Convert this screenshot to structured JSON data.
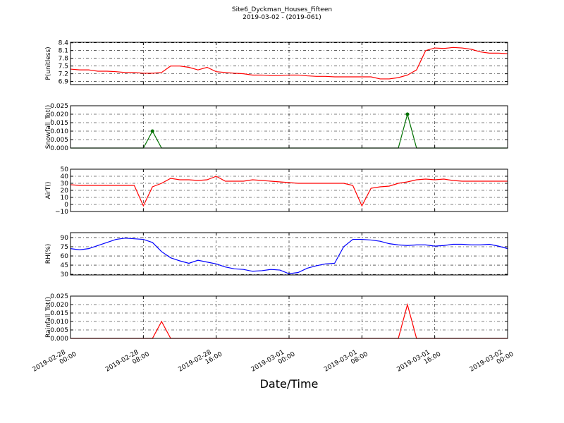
{
  "chart_data": {
    "title": "Site6_Dyckman_Houses_Fifteen",
    "subtitle": "2019-03-02 - (2019-061)",
    "x_label": "Date/Time",
    "xlim": [
      "2019-02-28 00:00",
      "2019-03-02 00:00"
    ],
    "xticks": [
      "2019-02-28 00:00",
      "2019-02-28 08:00",
      "2019-02-28 16:00",
      "2019-03-01 00:00",
      "2019-03-01 08:00",
      "2019-03-01 16:00",
      "2019-03-02 00:00"
    ],
    "grid": true,
    "x": [
      "2019-02-28 00:00",
      "2019-02-28 01:00",
      "2019-02-28 02:00",
      "2019-02-28 03:00",
      "2019-02-28 04:00",
      "2019-02-28 05:00",
      "2019-02-28 06:00",
      "2019-02-28 07:00",
      "2019-02-28 08:00",
      "2019-02-28 09:00",
      "2019-02-28 10:00",
      "2019-02-28 11:00",
      "2019-02-28 12:00",
      "2019-02-28 13:00",
      "2019-02-28 14:00",
      "2019-02-28 15:00",
      "2019-02-28 16:00",
      "2019-02-28 17:00",
      "2019-02-28 18:00",
      "2019-02-28 19:00",
      "2019-02-28 20:00",
      "2019-02-28 21:00",
      "2019-02-28 22:00",
      "2019-02-28 23:00",
      "2019-03-01 00:00",
      "2019-03-01 01:00",
      "2019-03-01 02:00",
      "2019-03-01 03:00",
      "2019-03-01 04:00",
      "2019-03-01 05:00",
      "2019-03-01 06:00",
      "2019-03-01 07:00",
      "2019-03-01 08:00",
      "2019-03-01 09:00",
      "2019-03-01 10:00",
      "2019-03-01 11:00",
      "2019-03-01 12:00",
      "2019-03-01 13:00",
      "2019-03-01 14:00",
      "2019-03-01 15:00",
      "2019-03-01 16:00",
      "2019-03-01 17:00",
      "2019-03-01 18:00",
      "2019-03-01 19:00",
      "2019-03-01 20:00",
      "2019-03-01 21:00",
      "2019-03-01 22:00",
      "2019-03-01 23:00",
      "2019-03-02 00:00"
    ],
    "panels": [
      {
        "type": "line",
        "y_label": "P(unitless)",
        "color": "#ff0000",
        "ylim": [
          6.78,
          8.42
        ],
        "yticks": [
          6.9,
          7.2,
          7.5,
          7.8,
          8.1,
          8.4
        ],
        "values": [
          7.38,
          7.35,
          7.35,
          7.3,
          7.3,
          7.28,
          7.25,
          7.25,
          7.22,
          7.22,
          7.25,
          7.5,
          7.5,
          7.45,
          7.35,
          7.45,
          7.28,
          7.25,
          7.22,
          7.2,
          7.15,
          7.15,
          7.13,
          7.13,
          7.15,
          7.15,
          7.12,
          7.1,
          7.1,
          7.08,
          7.08,
          7.08,
          7.08,
          7.08,
          7.0,
          7.0,
          7.05,
          7.15,
          7.35,
          8.1,
          8.2,
          8.18,
          8.22,
          8.2,
          8.15,
          8.05,
          8.0,
          8.0,
          7.98
        ]
      },
      {
        "type": "line",
        "y_label": "Snowfall_Tot()",
        "color": "#007000",
        "markers": true,
        "ylim": [
          0,
          0.025
        ],
        "yticks": [
          {
            "value": 0,
            "label": "0.000"
          },
          {
            "value": 0.005,
            "label": "0.005"
          },
          {
            "value": 0.01,
            "label": "0.010"
          },
          {
            "value": 0.015,
            "label": "0.015"
          },
          {
            "value": 0.02,
            "label": "0.020"
          },
          {
            "value": 0.025,
            "label": "0.025"
          }
        ],
        "values": [
          0,
          0,
          0,
          0,
          0,
          0,
          0,
          0,
          0,
          0.01,
          0,
          0,
          0,
          0,
          0,
          0,
          0,
          0,
          0,
          0,
          0,
          0,
          0,
          0,
          0,
          0,
          0,
          0,
          0,
          0,
          0,
          0,
          0,
          0,
          0,
          0,
          0,
          0.02,
          0,
          0,
          0,
          0,
          0,
          0,
          0,
          0,
          0,
          0,
          0
        ]
      },
      {
        "type": "line",
        "y_label": "AirT()",
        "color": "#ff0000",
        "ylim": [
          -10,
          50
        ],
        "yticks": [
          {
            "value": -10,
            "label": "−10"
          },
          0,
          10,
          20,
          30,
          40,
          50
        ],
        "values": [
          28,
          27,
          27,
          27,
          27,
          27,
          27,
          27,
          -2,
          25,
          30,
          37,
          35,
          35,
          34,
          35,
          40,
          33,
          33,
          33,
          35,
          34,
          33,
          32,
          31,
          30,
          30,
          30,
          30,
          30,
          30,
          27,
          -2,
          23,
          25,
          26,
          30,
          32,
          35,
          36,
          35,
          36,
          34,
          33,
          33,
          33,
          33,
          33,
          33
        ]
      },
      {
        "type": "line",
        "y_label": "RH(%)",
        "color": "#0000ff",
        "ylim": [
          29,
          98
        ],
        "yticks": [
          30,
          45,
          60,
          75,
          90
        ],
        "values": [
          72,
          70,
          72,
          77,
          82,
          87,
          89,
          88,
          87,
          82,
          67,
          57,
          52,
          48,
          53,
          50,
          47,
          42,
          39,
          38,
          35,
          36,
          38,
          37,
          31,
          33,
          40,
          44,
          47,
          48,
          75,
          87,
          87,
          86,
          84,
          80,
          78,
          77,
          78,
          78,
          76,
          77,
          79,
          79,
          78,
          78,
          79,
          76,
          72
        ]
      },
      {
        "type": "line",
        "y_label": "Rainfall_Tot()",
        "color": "#ff0000",
        "ylim": [
          0,
          0.025
        ],
        "yticks": [
          {
            "value": 0,
            "label": "0.000"
          },
          {
            "value": 0.005,
            "label": "0.005"
          },
          {
            "value": 0.01,
            "label": "0.010"
          },
          {
            "value": 0.015,
            "label": "0.015"
          },
          {
            "value": 0.02,
            "label": "0.020"
          },
          {
            "value": 0.025,
            "label": "0.025"
          }
        ],
        "values": [
          0,
          0,
          0,
          0,
          0,
          0,
          0,
          0,
          0,
          0,
          0.01,
          0,
          0,
          0,
          0,
          0,
          0,
          0,
          0,
          0,
          0,
          0,
          0,
          0,
          0,
          0,
          0,
          0,
          0,
          0,
          0,
          0,
          0,
          0,
          0,
          0,
          0,
          0.02,
          0,
          0,
          0,
          0,
          0,
          0,
          0,
          0,
          0,
          0,
          0
        ]
      }
    ]
  }
}
